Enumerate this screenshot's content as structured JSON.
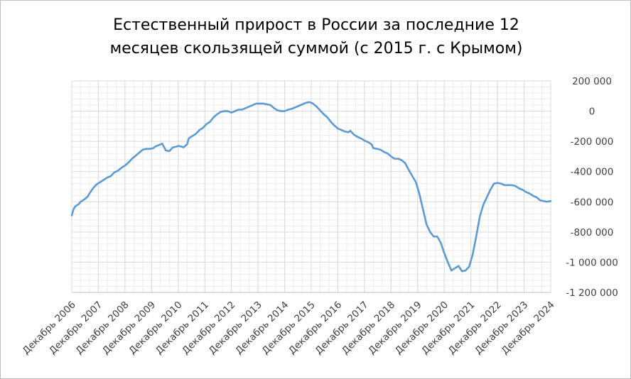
{
  "chart_data": {
    "type": "line",
    "title_line1": "Естественный прирост в России за последние 12",
    "title_line2": "месяцев скользящей суммой (с 2015 г. с Крымом)",
    "xlabel": "",
    "ylabel": "",
    "ylim": [
      -1200000,
      200000
    ],
    "y_ticks": [
      200000,
      0,
      -200000,
      -400000,
      -600000,
      -800000,
      -1000000,
      -1200000
    ],
    "y_tick_labels": [
      "200 000",
      "0",
      "-200 000",
      "-400 000",
      "-600 000",
      "-800 000",
      "-1 000 000",
      "-1 200 000"
    ],
    "y_axis_position": "right",
    "grid": true,
    "legend": "none",
    "x_tick_labels": [
      "Декабрь 2006",
      "Декабрь 2007",
      "Декабрь 2008",
      "Декабрь 2009",
      "Декабрь 2010",
      "Декабрь 2011",
      "Декабрь 2012",
      "Декабрь 2013",
      "Декабрь 2014",
      "Декабрь 2015",
      "Декабрь 2016",
      "Декабрь 2017",
      "Декабрь 2018",
      "Декабрь 2019",
      "Декабрь 2020",
      "Декабрь 2021",
      "Декабрь 2022",
      "Декабрь 2023",
      "Декабрь 2024"
    ],
    "series_color": "#5b9bd5",
    "series": [
      {
        "values": [
          [
            2006.0,
            -690000
          ],
          [
            2006.1,
            -650000
          ],
          [
            2006.2,
            -630000
          ],
          [
            2006.4,
            -615000
          ],
          [
            2006.5,
            -600000
          ],
          [
            2006.7,
            -585000
          ],
          [
            2006.9,
            -565000
          ],
          [
            2007.0,
            -545000
          ],
          [
            2007.2,
            -510000
          ],
          [
            2007.4,
            -485000
          ],
          [
            2007.6,
            -470000
          ],
          [
            2007.8,
            -455000
          ],
          [
            2008.0,
            -440000
          ],
          [
            2008.2,
            -430000
          ],
          [
            2008.4,
            -405000
          ],
          [
            2008.6,
            -395000
          ],
          [
            2008.8,
            -375000
          ],
          [
            2009.0,
            -360000
          ],
          [
            2009.2,
            -340000
          ],
          [
            2009.4,
            -315000
          ],
          [
            2009.6,
            -295000
          ],
          [
            2009.8,
            -275000
          ],
          [
            2010.0,
            -255000
          ],
          [
            2010.2,
            -250000
          ],
          [
            2010.4,
            -250000
          ],
          [
            2010.6,
            -245000
          ],
          [
            2010.7,
            -235000
          ],
          [
            2010.9,
            -225000
          ],
          [
            2011.0,
            -220000
          ],
          [
            2011.1,
            -215000
          ],
          [
            2011.3,
            -260000
          ],
          [
            2011.5,
            -265000
          ],
          [
            2011.7,
            -240000
          ],
          [
            2011.9,
            -235000
          ],
          [
            2012.0,
            -230000
          ],
          [
            2012.2,
            -235000
          ],
          [
            2012.3,
            -240000
          ],
          [
            2012.5,
            -220000
          ],
          [
            2012.6,
            -180000
          ],
          [
            2012.8,
            -165000
          ],
          [
            2013.0,
            -150000
          ],
          [
            2013.2,
            -125000
          ],
          [
            2013.4,
            -110000
          ],
          [
            2013.6,
            -85000
          ],
          [
            2013.8,
            -70000
          ],
          [
            2014.0,
            -40000
          ],
          [
            2014.2,
            -20000
          ],
          [
            2014.4,
            -5000
          ],
          [
            2014.6,
            0
          ],
          [
            2014.8,
            0
          ],
          [
            2015.0,
            -10000
          ],
          [
            2015.2,
            0
          ],
          [
            2015.4,
            10000
          ],
          [
            2015.6,
            10000
          ],
          [
            2015.8,
            20000
          ],
          [
            2016.0,
            30000
          ],
          [
            2016.2,
            40000
          ],
          [
            2016.4,
            50000
          ],
          [
            2016.6,
            50000
          ],
          [
            2016.8,
            50000
          ],
          [
            2017.0,
            45000
          ],
          [
            2017.2,
            40000
          ],
          [
            2017.4,
            20000
          ],
          [
            2017.6,
            5000
          ],
          [
            2017.8,
            0
          ],
          [
            2018.0,
            0
          ],
          [
            2018.2,
            10000
          ],
          [
            2018.4,
            15000
          ],
          [
            2018.6,
            25000
          ],
          [
            2018.8,
            35000
          ],
          [
            2019.0,
            45000
          ],
          [
            2019.2,
            55000
          ],
          [
            2019.4,
            60000
          ],
          [
            2019.6,
            50000
          ],
          [
            2019.8,
            30000
          ],
          [
            2020.0,
            5000
          ],
          [
            2020.2,
            -20000
          ],
          [
            2020.4,
            -40000
          ],
          [
            2020.6,
            -70000
          ],
          [
            2020.8,
            -95000
          ],
          [
            2021.0,
            -115000
          ],
          [
            2021.2,
            -125000
          ],
          [
            2021.4,
            -135000
          ],
          [
            2021.6,
            -140000
          ],
          [
            2021.7,
            -130000
          ],
          [
            2021.9,
            -155000
          ],
          [
            2022.1,
            -170000
          ],
          [
            2022.3,
            -180000
          ],
          [
            2022.5,
            -195000
          ],
          [
            2022.7,
            -205000
          ],
          [
            2022.9,
            -220000
          ],
          [
            2023.0,
            -245000
          ],
          [
            2023.2,
            -250000
          ],
          [
            2023.4,
            -255000
          ],
          [
            2023.6,
            -270000
          ],
          [
            2023.8,
            -280000
          ],
          [
            2024.0,
            -300000
          ],
          [
            2024.2,
            -315000
          ],
          [
            2024.4,
            -315000
          ],
          [
            2024.6,
            -325000
          ],
          [
            2024.8,
            -345000
          ],
          [
            2025.0,
            -390000
          ],
          [
            2025.2,
            -430000
          ],
          [
            2025.4,
            -470000
          ],
          [
            2025.6,
            -550000
          ],
          [
            2025.8,
            -650000
          ],
          [
            2026.0,
            -750000
          ],
          [
            2026.2,
            -800000
          ],
          [
            2026.4,
            -830000
          ],
          [
            2026.6,
            -830000
          ],
          [
            2026.8,
            -870000
          ],
          [
            2027.0,
            -940000
          ],
          [
            2027.2,
            -1000000
          ],
          [
            2027.4,
            -1055000
          ],
          [
            2027.6,
            -1040000
          ],
          [
            2027.8,
            -1025000
          ],
          [
            2028.0,
            -1060000
          ],
          [
            2028.2,
            -1055000
          ],
          [
            2028.4,
            -1030000
          ],
          [
            2028.6,
            -950000
          ],
          [
            2028.8,
            -830000
          ],
          [
            2029.0,
            -700000
          ],
          [
            2029.2,
            -620000
          ],
          [
            2029.4,
            -570000
          ],
          [
            2029.6,
            -520000
          ],
          [
            2029.8,
            -480000
          ],
          [
            2030.0,
            -475000
          ],
          [
            2030.2,
            -480000
          ],
          [
            2030.4,
            -490000
          ],
          [
            2030.6,
            -490000
          ],
          [
            2030.8,
            -490000
          ],
          [
            2031.0,
            -495000
          ],
          [
            2031.2,
            -510000
          ],
          [
            2031.4,
            -520000
          ],
          [
            2031.6,
            -535000
          ],
          [
            2031.8,
            -545000
          ],
          [
            2032.0,
            -560000
          ],
          [
            2032.2,
            -570000
          ],
          [
            2032.4,
            -590000
          ],
          [
            2032.6,
            -595000
          ],
          [
            2032.8,
            -600000
          ],
          [
            2033.0,
            -595000
          ]
        ]
      }
    ]
  }
}
